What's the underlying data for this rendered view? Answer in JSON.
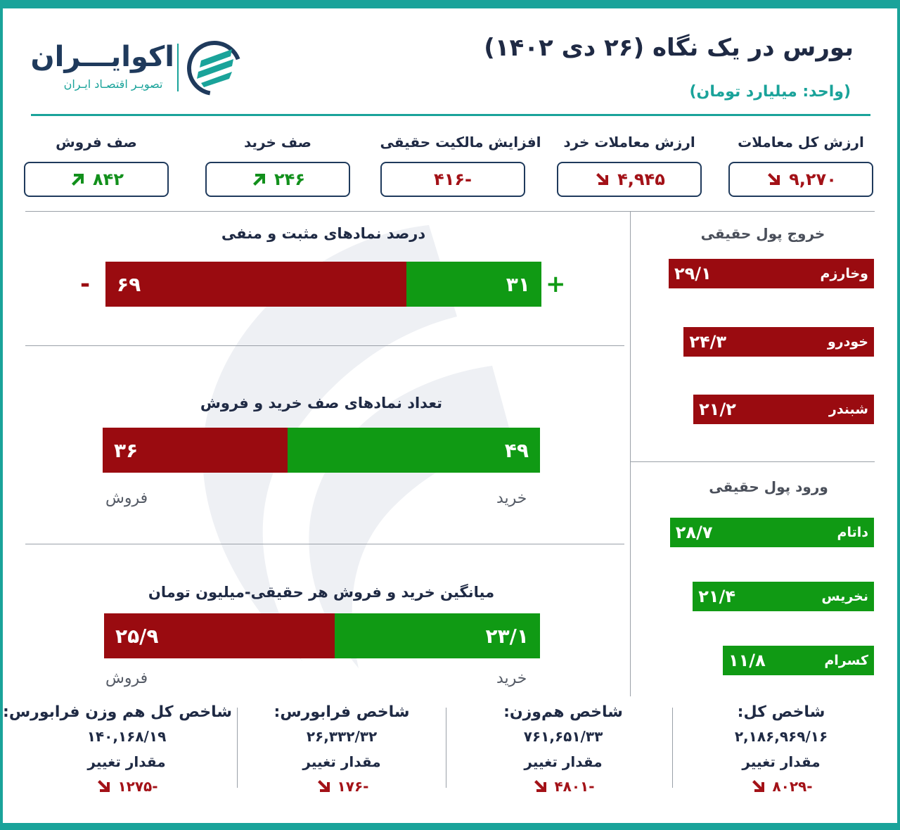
{
  "header": {
    "title": "بورس در یک نگاه (۲۶ دی ۱۴۰۲)",
    "subtitle": "(واحد: میلیارد تومان)",
    "logo_name": "اکوایـــران",
    "logo_tagline": "تصویـر اقتصـاد ایـران"
  },
  "kpis": [
    {
      "label": "ارزش کل معاملات",
      "value": "۹,۲۷۰",
      "trend": "down"
    },
    {
      "label": "ارزش معاملات خرد",
      "value": "۴,۹۴۵",
      "trend": "down"
    },
    {
      "label": "افزایش مالکیت حقیقی",
      "value": "-۴۱۶",
      "trend": "none"
    },
    {
      "label": "صف خرید",
      "value": "۲۴۶",
      "trend": "up"
    },
    {
      "label": "صف فروش",
      "value": "۸۴۲",
      "trend": "up"
    }
  ],
  "symbols_percent": {
    "title": "درصد نمادهای مثبت و منفی",
    "negative_value": "۶۹",
    "positive_value": "۳۱",
    "negative_sign": "-",
    "positive_sign": "+"
  },
  "queues_count": {
    "title": "تعداد نمادهای صف خرید و فروش",
    "sell_value": "۳۶",
    "buy_value": "۴۹",
    "sell_label": "فروش",
    "buy_label": "خرید"
  },
  "avg_trade": {
    "title": "میانگین خرید و فروش هر حقیقی-میلیون تومان",
    "sell_value": "۲۵/۹",
    "buy_value": "۲۳/۱",
    "sell_label": "فروش",
    "buy_label": "خرید"
  },
  "money_out": {
    "title": "خروج پول حقیقی",
    "items": [
      {
        "name": "وخارزم",
        "value": "۲۹/۱"
      },
      {
        "name": "خودرو",
        "value": "۲۴/۳"
      },
      {
        "name": "شبندر",
        "value": "۲۱/۲"
      }
    ]
  },
  "money_in": {
    "title": "ورود پول حقیقی",
    "items": [
      {
        "name": "داتام",
        "value": "۲۸/۷"
      },
      {
        "name": "نخریس",
        "value": "۲۱/۴"
      },
      {
        "name": "کسرام",
        "value": "۱۱/۸"
      }
    ]
  },
  "indices": [
    {
      "title": "شاخص کل:",
      "value": "۲,۱۸۶,۹۶۹/۱۶",
      "change_label": "مقدار تغییر",
      "change": "-۸۰۲۹"
    },
    {
      "title": "شاخص هم‌وزن:",
      "value": "۷۶۱,۶۵۱/۳۳",
      "change_label": "مقدار تغییر",
      "change": "-۴۸۰۱"
    },
    {
      "title": "شاخص فرابورس:",
      "value": "۲۶,۳۳۲/۳۲",
      "change_label": "مقدار تغییر",
      "change": "-۱۷۶"
    },
    {
      "title": "شاخص کل هم وزن فرابورس:",
      "value": "۱۴۰,۱۶۸/۱۹",
      "change_label": "مقدار تغییر",
      "change": "-۱۲۷۵"
    }
  ],
  "chart_data": [
    {
      "type": "bar",
      "title": "درصد نمادهای مثبت و منفی",
      "categories": [
        "-",
        "+"
      ],
      "values": [
        69,
        31
      ]
    },
    {
      "type": "bar",
      "title": "تعداد نمادهای صف خرید و فروش",
      "categories": [
        "فروش",
        "خرید"
      ],
      "values": [
        36,
        49
      ]
    },
    {
      "type": "bar",
      "title": "میانگین خرید و فروش هر حقیقی-میلیون تومان",
      "categories": [
        "فروش",
        "خرید"
      ],
      "values": [
        25.9,
        23.1
      ]
    },
    {
      "type": "bar",
      "title": "خروج پول حقیقی",
      "categories": [
        "وخارزم",
        "خودرو",
        "شبندر"
      ],
      "values": [
        29.1,
        24.3,
        21.2
      ]
    },
    {
      "type": "bar",
      "title": "ورود پول حقیقی",
      "categories": [
        "داتام",
        "نخریس",
        "کسرام"
      ],
      "values": [
        28.7,
        21.4,
        11.8
      ]
    }
  ],
  "colors": {
    "accent": "#1aa39a",
    "navy": "#1f3a5c",
    "negative": "#9a0b10",
    "positive": "#109a14"
  }
}
